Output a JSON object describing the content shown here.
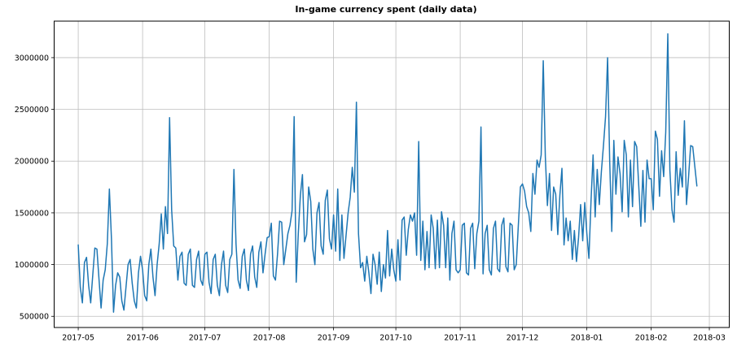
{
  "chart_data": {
    "type": "line",
    "title": "In-game currency spent (daily data)",
    "x_start_date": "2017-05-01",
    "x_tick_labels": [
      "2017-05",
      "2017-06",
      "2017-07",
      "2017-08",
      "2017-09",
      "2017-10",
      "2017-11",
      "2017-12",
      "2018-01",
      "2018-02",
      "2018-03"
    ],
    "x_tick_days": [
      0,
      31,
      61,
      92,
      123,
      153,
      184,
      214,
      245,
      276,
      304
    ],
    "y_tick_labels": [
      "500000",
      "1000000",
      "1500000",
      "2000000",
      "2500000",
      "3000000"
    ],
    "y_tick_values": [
      500000,
      1000000,
      1500000,
      2000000,
      2500000,
      3000000
    ],
    "xlim_days": [
      -11.6,
      313.6
    ],
    "ylim": [
      392000,
      3353000
    ],
    "grid": true,
    "legend": "none",
    "line_color": "#1f77b4",
    "grid_color": "#bdbdbd",
    "axis_color": "#000000",
    "values": [
      1190000,
      780000,
      630000,
      1020000,
      1070000,
      800000,
      630000,
      900000,
      1160000,
      1150000,
      860000,
      580000,
      850000,
      950000,
      1200000,
      1730000,
      1250000,
      540000,
      800000,
      920000,
      880000,
      650000,
      560000,
      780000,
      1000000,
      1050000,
      820000,
      650000,
      580000,
      920000,
      1080000,
      950000,
      700000,
      650000,
      1000000,
      1150000,
      880000,
      700000,
      1000000,
      1200000,
      1490000,
      1150000,
      1560000,
      1300000,
      2420000,
      1530000,
      1180000,
      1160000,
      850000,
      1080000,
      1120000,
      820000,
      800000,
      1100000,
      1150000,
      800000,
      780000,
      1050000,
      1130000,
      850000,
      800000,
      1100000,
      1120000,
      830000,
      720000,
      1050000,
      1100000,
      800000,
      700000,
      1000000,
      1130000,
      800000,
      730000,
      1050000,
      1100000,
      1920000,
      1200000,
      850000,
      770000,
      1080000,
      1150000,
      850000,
      750000,
      1100000,
      1180000,
      880000,
      780000,
      1120000,
      1220000,
      920000,
      1100000,
      1260000,
      1270000,
      1400000,
      890000,
      850000,
      1100000,
      1420000,
      1410000,
      1000000,
      1150000,
      1300000,
      1380000,
      1520000,
      2430000,
      830000,
      1300000,
      1670000,
      1870000,
      1220000,
      1290000,
      1750000,
      1610000,
      1150000,
      1000000,
      1500000,
      1600000,
      1180000,
      1100000,
      1620000,
      1720000,
      1250000,
      1150000,
      1480000,
      1130000,
      1730000,
      1040000,
      1480000,
      1060000,
      1280000,
      1500000,
      1650000,
      1940000,
      1700000,
      2570000,
      1300000,
      970000,
      1020000,
      840000,
      1080000,
      920000,
      720000,
      1100000,
      1000000,
      810000,
      1120000,
      740000,
      1000000,
      870000,
      1330000,
      890000,
      1150000,
      950000,
      840000,
      1240000,
      850000,
      1430000,
      1460000,
      1090000,
      1340000,
      1480000,
      1420000,
      1500000,
      1090000,
      2190000,
      1040000,
      1420000,
      950000,
      1320000,
      970000,
      1480000,
      1350000,
      960000,
      1430000,
      970000,
      1510000,
      1380000,
      970000,
      1450000,
      850000,
      1300000,
      1420000,
      950000,
      920000,
      950000,
      1380000,
      1400000,
      920000,
      900000,
      1350000,
      1400000,
      960000,
      1300000,
      1420000,
      2330000,
      910000,
      1300000,
      1380000,
      950000,
      900000,
      1350000,
      1420000,
      960000,
      930000,
      1380000,
      1450000,
      980000,
      930000,
      1400000,
      1380000,
      950000,
      1000000,
      1380000,
      1750000,
      1780000,
      1710000,
      1560000,
      1500000,
      1320000,
      1880000,
      1680000,
      2010000,
      1940000,
      2060000,
      2970000,
      2040000,
      1570000,
      1880000,
      1330000,
      1750000,
      1680000,
      1290000,
      1670000,
      1930000,
      1190000,
      1450000,
      1230000,
      1420000,
      1050000,
      1330000,
      1030000,
      1260000,
      1580000,
      1230000,
      1600000,
      1300000,
      1060000,
      1610000,
      2060000,
      1460000,
      1920000,
      1580000,
      1900000,
      2150000,
      2430000,
      3000000,
      2000000,
      1320000,
      2200000,
      1680000,
      2040000,
      1880000,
      1510000,
      2200000,
      2060000,
      1460000,
      2010000,
      1560000,
      2190000,
      2140000,
      1760000,
      1370000,
      1910000,
      1410000,
      2010000,
      1830000,
      1830000,
      1530000,
      2290000,
      2210000,
      1660000,
      2100000,
      1850000,
      2280000,
      3230000,
      1910000,
      1530000,
      1410000,
      2090000,
      1670000,
      1930000,
      1750000,
      2390000,
      1580000,
      1850000,
      2150000,
      2140000,
      1950000,
      1760000
    ]
  }
}
